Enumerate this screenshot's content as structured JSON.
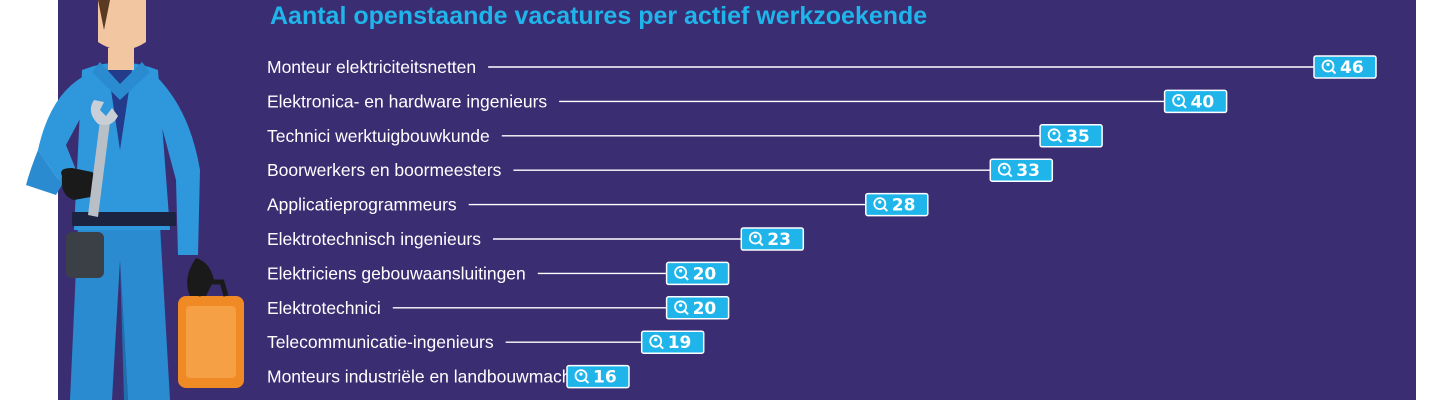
{
  "chart_data": {
    "type": "bar",
    "title": "Aantal openstaande vacatures per actief werkzoekende",
    "categories": [
      "Monteur elektriciteitsnetten",
      "Elektronica- en hardware ingenieurs",
      "Technici werktuigbouwkunde",
      "Boorwerkers en boormeesters",
      "Applicatieprogrammeurs",
      "Elektrotechnisch ingenieurs",
      "Elektriciens gebouwaansluitingen",
      "Elektrotechnici",
      "Telecommunicatie-ingenieurs",
      "Monteurs industriële en landbouwmachines"
    ],
    "values": [
      46,
      40,
      35,
      33,
      28,
      23,
      20,
      20,
      19,
      16
    ],
    "value_labels": [
      "46",
      "40",
      "35",
      "33",
      "28",
      "23",
      "20",
      "20",
      "19",
      "16"
    ],
    "orientation": "horizontal",
    "xlim": [
      0,
      46
    ],
    "grid": false,
    "legend": "none"
  },
  "colors": {
    "background": "#3a2d72",
    "title": "#1fb5ea",
    "badge": "#1fb5ea",
    "leader_line": "#ffffff",
    "label_text": "#ffffff"
  },
  "icons": {
    "badge_icon": "search-person-icon",
    "illustration": "mechanic-with-wrench-and-toolbox"
  }
}
